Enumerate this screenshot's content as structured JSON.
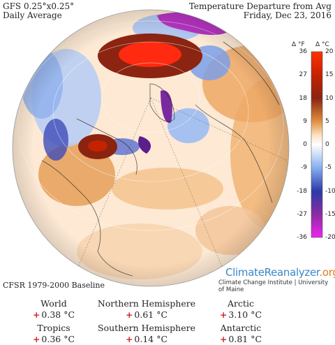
{
  "header_left": {
    "line1": "GFS 0.25°x0.25°",
    "line2": "Daily Average"
  },
  "header_right": {
    "line1": "Temperature Departure from Avg",
    "line2": "Friday, Dec 23, 2016"
  },
  "colorbar": {
    "unit_f": "Δ °F",
    "unit_c": "Δ °C",
    "ticks_f": [
      "36",
      "27",
      "18",
      "9",
      "0",
      "-9",
      "-18",
      "-27",
      "-36"
    ],
    "ticks_c": [
      "20",
      "15",
      "10",
      "5",
      "0",
      "-5",
      "-10",
      "-15",
      "-20"
    ],
    "colors": [
      "#ff3300",
      "#c52200",
      "#8a2410",
      "#e08f3f",
      "#ffffff",
      "#86aef0",
      "#2b3aa8",
      "#8a2da0",
      "#f022f0"
    ]
  },
  "baseline": "CFSR 1979-2000 Baseline",
  "brand": {
    "name": "ClimateReanalyzer",
    "tld": ".org",
    "subtitle": "Climate Change Institute | University of Maine"
  },
  "stats": [
    {
      "name": "World",
      "sign": "+",
      "value": "0.38 °C"
    },
    {
      "name": "Northern Hemisphere",
      "sign": "+",
      "value": "0.61 °C"
    },
    {
      "name": "Arctic",
      "sign": "+",
      "value": "3.10 °C"
    },
    {
      "name": "Tropics",
      "sign": "+",
      "value": "0.36 °C"
    },
    {
      "name": "Southern Hemisphere",
      "sign": "+",
      "value": "0.14 °C"
    },
    {
      "name": "Antarctic",
      "sign": "+",
      "value": "0.81 °C"
    }
  ]
}
